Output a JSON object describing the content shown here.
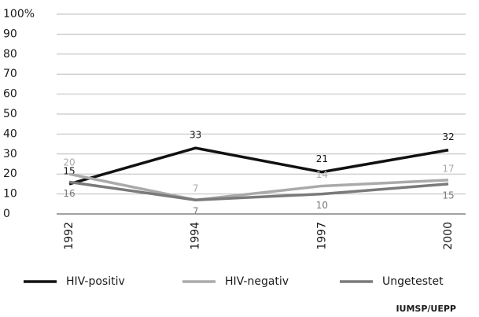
{
  "chart_data": {
    "type": "line",
    "categories": [
      "1992",
      "1994",
      "1997",
      "2000"
    ],
    "series": [
      {
        "name": "HIV-positiv",
        "color": "#111111",
        "values": [
          15,
          33,
          21,
          32
        ]
      },
      {
        "name": "HIV-negativ",
        "color": "#aaaaaa",
        "values": [
          20,
          7,
          14,
          17
        ]
      },
      {
        "name": "Ungetestet",
        "color": "#7a7a7a",
        "values": [
          16,
          7,
          10,
          15
        ]
      }
    ],
    "ylim": [
      0,
      100
    ],
    "yticks": [
      0,
      10,
      20,
      30,
      40,
      50,
      60,
      70,
      80,
      90,
      {
        "value": 100,
        "label": "100%"
      }
    ],
    "grid": true,
    "legend": "bottom",
    "source": "IUMSP/UEPP"
  }
}
